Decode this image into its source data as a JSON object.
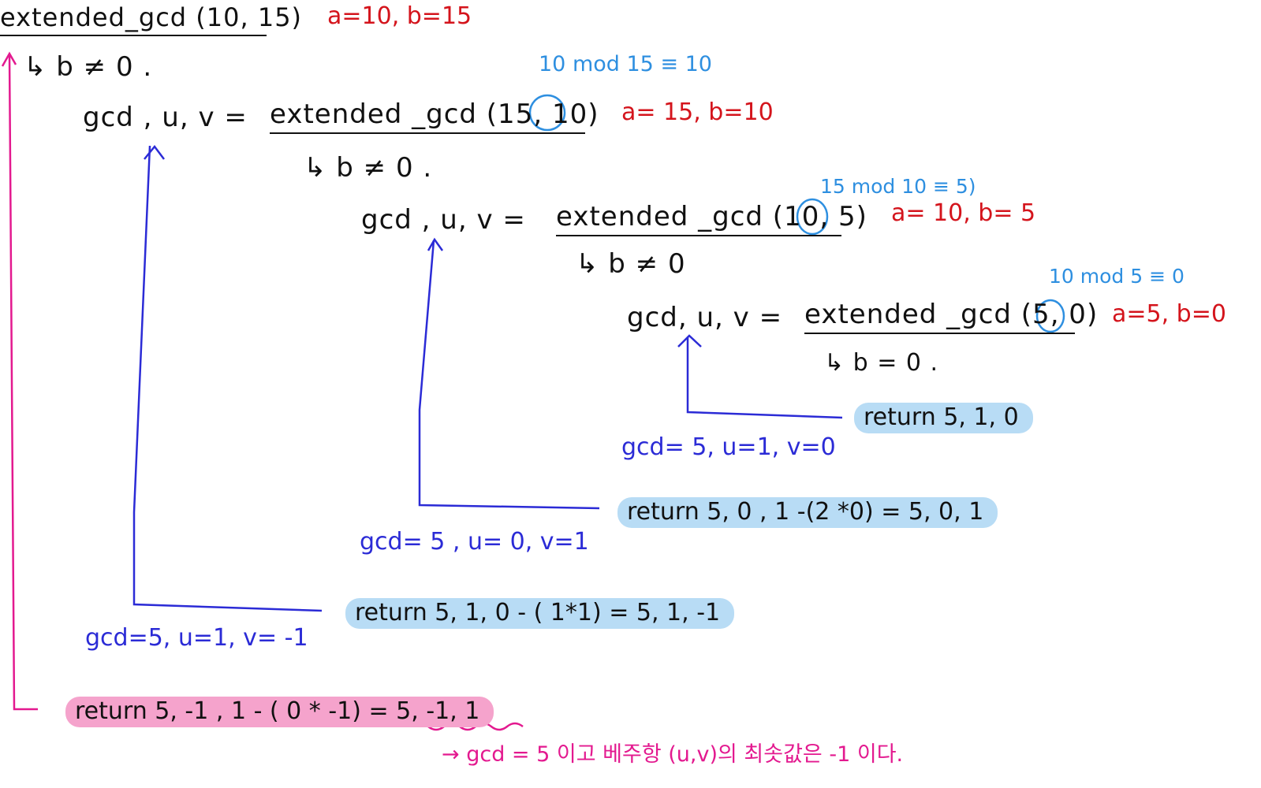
{
  "calls": [
    {
      "call": "extended_gcd (10, 15)",
      "params": "a=10, b=15",
      "cond": "↳  b ≠ 0 ."
    },
    {
      "lhs": "gcd , u, v  =",
      "call": "extended _gcd (15, 10)",
      "params": "a= 15,  b=10",
      "mod": "10 mod 15 ≡ 10",
      "cond": "↳  b ≠ 0 ."
    },
    {
      "lhs": "gcd ,  u, v  =",
      "call": "extended _gcd  (10, 5)",
      "params": "a= 10,  b= 5",
      "mod": "15 mod 10 ≡ 5)",
      "cond": "↳  b ≠ 0"
    },
    {
      "lhs": "gcd,  u,  v  =",
      "call": "extended _gcd  (5, 0)",
      "params": "a=5, b=0",
      "mod": "10 mod 5 ≡ 0",
      "cond": "↳  b = 0 ."
    }
  ],
  "returns": [
    {
      "text": "return   5,  1, 0",
      "result": "gcd= 5, u=1,  v=0"
    },
    {
      "text": "return   5,  0 ,  1 -(2 *0)   = 5, 0, 1",
      "result": "gcd= 5 , u= 0, v=1"
    },
    {
      "text": "return  5,  1, 0 -  ( 1*1)  =  5, 1, -1",
      "result": "gcd=5,  u=1, v= -1"
    },
    {
      "text": "return   5, -1 ,  1 - ( 0 * -1)  =  5, -1, 1"
    }
  ],
  "conclusion": "→ gcd = 5 이고   베주항 (u,v)의 최솟값은  -1 이다.",
  "colors": {
    "black": "#111111",
    "red": "#d4141c",
    "sky": "#2e8fe0",
    "blue": "#2b2bd6",
    "magenta": "#e3198f",
    "highlight_blue": "#b8dcf5",
    "highlight_pink": "#f5a3cc"
  }
}
